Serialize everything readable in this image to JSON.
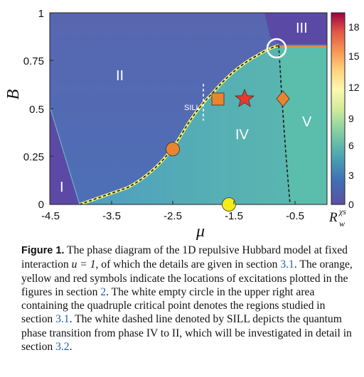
{
  "figure": {
    "y_axis_name": "B",
    "x_axis_name": "μ",
    "y_ticks": [
      "1",
      "0.75",
      "0.5",
      "0.25",
      "0"
    ],
    "x_ticks": [
      "-4.5",
      "-3.5",
      "-2.5",
      "-1.5",
      "-0.5"
    ],
    "regions": [
      "I",
      "II",
      "III",
      "IV",
      "V"
    ],
    "sill_label": "SILL",
    "colorbar_label": "R",
    "colorbar_label_sup": "χs",
    "colorbar_label_sub": "w",
    "colorbar_ticks": [
      "18",
      "15",
      "12",
      "9",
      "6",
      "3",
      "0"
    ],
    "colors": {
      "phase_low": "#5462ae",
      "phase_mid": "#4f8fc0",
      "phase_iv": "#56b3b1",
      "phase_iii": "#5a4aa6",
      "phase_i": "#5b49a5",
      "boundary": "#e8f07a",
      "orange_marker": "#e9852f",
      "yellow_marker": "#f3ec1a",
      "red_marker": "#e83a2c"
    },
    "markers": [
      "orange-square",
      "red-star",
      "orange-diamond",
      "orange-circle",
      "yellow-circle",
      "white-circle"
    ]
  },
  "caption": {
    "label": "Figure 1.",
    "text_1": " The phase diagram of the 1D repulsive Hubbard model at fixed interaction ",
    "u_eq": "u = 1",
    "text_2": ", of which the details are given in section ",
    "ref_1": "3.1",
    "text_3": ". The orange, yellow and red symbols indicate the locations of excitations plotted in the figures in section ",
    "ref_2": "2",
    "text_4": ". The white empty circle in the upper right area containing the quadruple critical point denotes the regions studied in section ",
    "ref_3": "3.1",
    "text_5": ". The white dashed line denoted by SILL depicts the quantum phase transition from phase IV to II, which will be investigated in detail in section ",
    "ref_4": "3.2",
    "text_6": "."
  }
}
